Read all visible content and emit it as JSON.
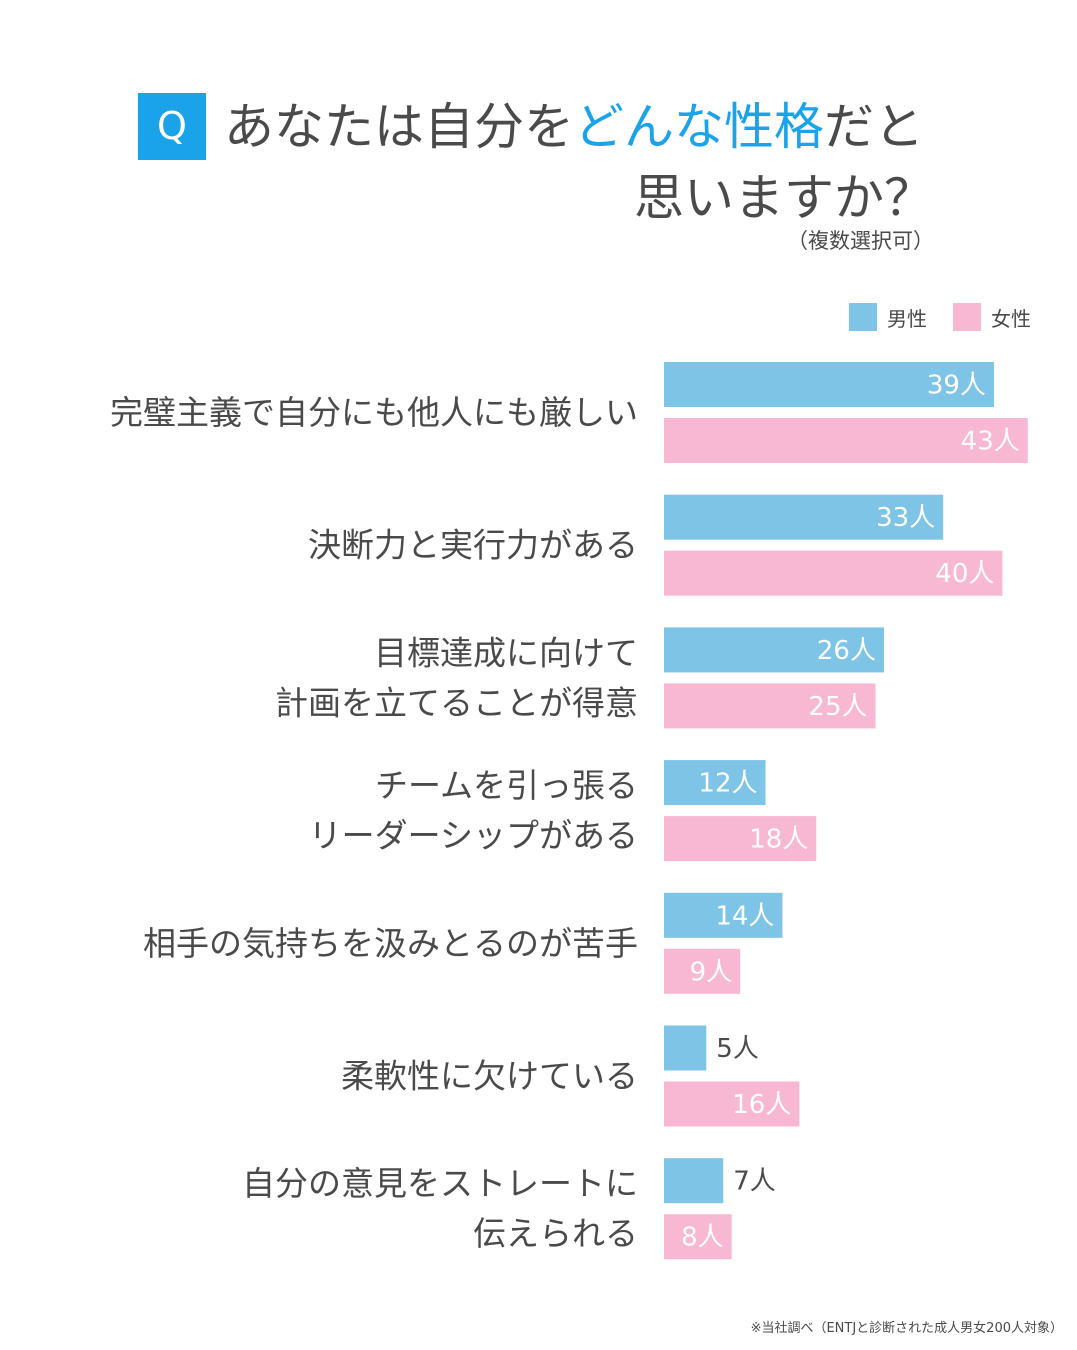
{
  "header": {
    "badge": "Q",
    "title_part1": "あなたは自分を",
    "title_accent": "どんな性格",
    "title_part2": "だと",
    "title_line2": "思いますか？",
    "note": "（複数選択可）"
  },
  "colors": {
    "accent": "#1aa3e8",
    "male": "#7ec4e6",
    "female": "#f8b7d3",
    "text": "#4a4a4a"
  },
  "chart_data": {
    "type": "bar",
    "orientation": "horizontal",
    "unit": "人",
    "categories": [
      [
        "完璧主義で自分にも他人にも厳しい"
      ],
      [
        "決断力と実行力がある"
      ],
      [
        "目標達成に向けて",
        "計画を立てることが得意"
      ],
      [
        "チームを引っ張る",
        "リーダーシップがある"
      ],
      [
        "相手の気持ちを汲みとるのが苦手"
      ],
      [
        "柔軟性に欠けている"
      ],
      [
        "自分の意見をストレートに",
        "伝えられる"
      ]
    ],
    "series": [
      {
        "name": "男性",
        "color": "#7ec4e6",
        "values": [
          39,
          33,
          26,
          12,
          14,
          5,
          7
        ]
      },
      {
        "name": "女性",
        "color": "#f8b7d3",
        "values": [
          43,
          40,
          25,
          18,
          9,
          16,
          8
        ]
      }
    ],
    "legend_position": "top-right",
    "grid": false
  },
  "footnote": "※当社調べ（ENTJと診断された成人男女200人対象）"
}
